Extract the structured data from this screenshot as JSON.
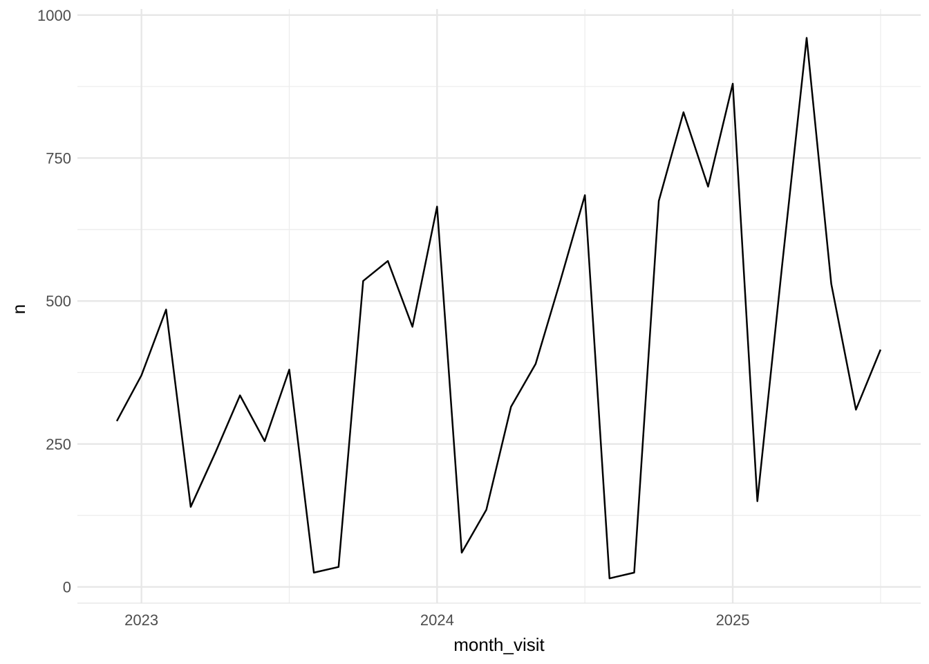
{
  "chart_data": {
    "type": "line",
    "title": "",
    "xlabel": "month_visit",
    "ylabel": "n",
    "x": [
      "2022-12",
      "2023-01",
      "2023-02",
      "2023-03",
      "2023-04",
      "2023-05",
      "2023-06",
      "2023-07",
      "2023-08",
      "2023-09",
      "2023-10",
      "2023-11",
      "2023-12",
      "2024-01",
      "2024-02",
      "2024-03",
      "2024-04",
      "2024-05",
      "2024-06",
      "2024-07",
      "2024-08",
      "2024-09",
      "2024-10",
      "2024-11",
      "2024-12",
      "2025-01",
      "2025-02",
      "2025-03",
      "2025-04",
      "2025-05",
      "2025-06",
      "2025-07"
    ],
    "values": [
      290,
      370,
      485,
      140,
      235,
      335,
      255,
      380,
      25,
      35,
      535,
      570,
      455,
      665,
      60,
      135,
      315,
      390,
      535,
      685,
      15,
      25,
      675,
      830,
      700,
      880,
      150,
      560,
      960,
      530,
      310,
      415
    ],
    "ylim": [
      0,
      1000
    ],
    "y_ticks": [
      {
        "label": "0",
        "value": 0
      },
      {
        "label": "250",
        "value": 250
      },
      {
        "label": "500",
        "value": 500
      },
      {
        "label": "750",
        "value": 750
      },
      {
        "label": "1000",
        "value": 1000
      }
    ],
    "y_minor": [
      125,
      375,
      625,
      875
    ],
    "x_ticks": [
      {
        "label": "2023",
        "month": "2023-01"
      },
      {
        "label": "2024",
        "month": "2024-01"
      },
      {
        "label": "2025",
        "month": "2025-01"
      }
    ],
    "x_minor_months": [
      "2023-07",
      "2024-07",
      "2025-07"
    ],
    "grid": true,
    "legend": "none",
    "line_color": "#000000",
    "background_color": "#ffffff",
    "grid_major_color": "#e7e7e7",
    "grid_minor_color": "#ededed",
    "axis_line_color": "#e3e3e3",
    "tick_label_color": "#4d4d4d",
    "title_color": "#000000"
  }
}
